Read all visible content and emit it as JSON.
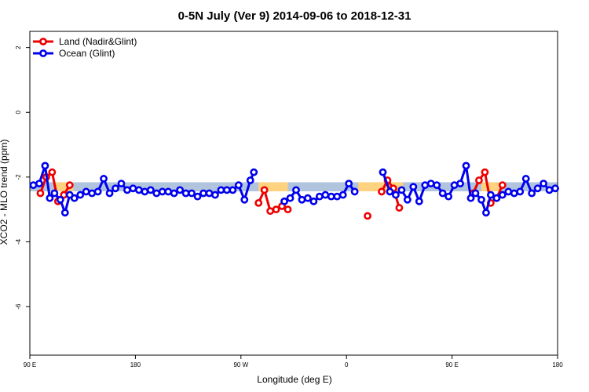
{
  "chart_data": {
    "type": "line",
    "title": "0-5N July (Ver 9)   2014-09-06 to 2018-12-31",
    "xlabel": "Longitude (deg E)",
    "ylabel": "XCO2 - MLO trend (ppm)",
    "x_ticks": [
      {
        "value": 30,
        "label": "90 E"
      },
      {
        "value": 120,
        "label": "180"
      },
      {
        "value": 210,
        "label": "90 W"
      },
      {
        "value": 300,
        "label": "0"
      },
      {
        "value": 390,
        "label": "90 E"
      },
      {
        "value": 480,
        "label": "180"
      }
    ],
    "xlim": [
      30,
      480
    ],
    "ylim": [
      -7.5,
      2.5
    ],
    "y_ticks": [
      2,
      0,
      -2,
      -4,
      -6
    ],
    "grid": false,
    "legend_position": "top-left",
    "series": [
      {
        "name": "Land (Nadir&Glint)",
        "color": "#ee0000",
        "segments": [
          [
            [
              39,
              -2.5
            ],
            [
              44,
              -2.0
            ],
            [
              49,
              -1.85
            ],
            [
              54,
              -2.75
            ],
            [
              59,
              -2.55
            ],
            [
              64,
              -2.25
            ]
          ],
          [
            [
              225,
              -2.8
            ],
            [
              230,
              -2.4
            ],
            [
              235,
              -3.05
            ],
            [
              240,
              -3.0
            ],
            [
              245,
              -2.9
            ],
            [
              250,
              -3.0
            ]
          ],
          [
            [
              318,
              -3.2
            ]
          ],
          [
            [
              330,
              -2.45
            ],
            [
              335,
              -2.1
            ],
            [
              340,
              -2.35
            ],
            [
              345,
              -2.95
            ]
          ],
          [
            [
              408,
              -2.5
            ],
            [
              413,
              -2.1
            ],
            [
              418,
              -1.85
            ],
            [
              423,
              -2.8
            ],
            [
              428,
              -2.65
            ],
            [
              433,
              -2.25
            ]
          ]
        ]
      },
      {
        "name": "Ocean (Glint)",
        "color": "#0000ee",
        "segments": [
          [
            [
              33,
              -2.25
            ],
            [
              38,
              -2.2
            ],
            [
              43,
              -1.65
            ],
            [
              47,
              -2.65
            ],
            [
              51,
              -2.5
            ],
            [
              56,
              -2.7
            ],
            [
              60,
              -3.1
            ],
            [
              64,
              -2.55
            ],
            [
              68,
              -2.65
            ],
            [
              73,
              -2.55
            ],
            [
              78,
              -2.45
            ],
            [
              83,
              -2.5
            ],
            [
              88,
              -2.45
            ],
            [
              93,
              -2.05
            ],
            [
              98,
              -2.5
            ],
            [
              103,
              -2.35
            ],
            [
              108,
              -2.2
            ],
            [
              113,
              -2.4
            ],
            [
              118,
              -2.35
            ],
            [
              123,
              -2.4
            ],
            [
              128,
              -2.45
            ],
            [
              133,
              -2.4
            ],
            [
              138,
              -2.5
            ],
            [
              143,
              -2.45
            ],
            [
              148,
              -2.45
            ],
            [
              153,
              -2.5
            ],
            [
              158,
              -2.4
            ],
            [
              163,
              -2.5
            ],
            [
              168,
              -2.5
            ],
            [
              173,
              -2.6
            ],
            [
              178,
              -2.5
            ],
            [
              183,
              -2.5
            ],
            [
              188,
              -2.55
            ],
            [
              193,
              -2.4
            ],
            [
              198,
              -2.4
            ],
            [
              203,
              -2.4
            ],
            [
              208,
              -2.25
            ],
            [
              213,
              -2.7
            ],
            [
              218,
              -2.1
            ],
            [
              221,
              -1.85
            ]
          ],
          [
            [
              247,
              -2.75
            ],
            [
              252,
              -2.65
            ],
            [
              257,
              -2.4
            ],
            [
              262,
              -2.7
            ],
            [
              267,
              -2.65
            ],
            [
              272,
              -2.75
            ],
            [
              277,
              -2.6
            ],
            [
              282,
              -2.55
            ],
            [
              287,
              -2.6
            ],
            [
              292,
              -2.6
            ],
            [
              297,
              -2.55
            ],
            [
              302,
              -2.2
            ],
            [
              307,
              -2.45
            ]
          ],
          [
            [
              331,
              -1.85
            ],
            [
              337,
              -2.45
            ],
            [
              342,
              -2.55
            ],
            [
              347,
              -2.4
            ],
            [
              352,
              -2.7
            ],
            [
              357,
              -2.3
            ],
            [
              362,
              -2.75
            ],
            [
              367,
              -2.25
            ],
            [
              372,
              -2.2
            ],
            [
              377,
              -2.25
            ],
            [
              382,
              -2.5
            ],
            [
              387,
              -2.6
            ],
            [
              392,
              -2.25
            ],
            [
              397,
              -2.2
            ],
            [
              402,
              -1.65
            ],
            [
              406,
              -2.65
            ],
            [
              410,
              -2.5
            ],
            [
              415,
              -2.7
            ],
            [
              419,
              -3.1
            ],
            [
              423,
              -2.55
            ],
            [
              428,
              -2.65
            ],
            [
              433,
              -2.55
            ],
            [
              438,
              -2.45
            ],
            [
              443,
              -2.5
            ],
            [
              448,
              -2.45
            ],
            [
              453,
              -2.05
            ],
            [
              458,
              -2.5
            ],
            [
              463,
              -2.35
            ],
            [
              468,
              -2.2
            ],
            [
              473,
              -2.4
            ],
            [
              478,
              -2.35
            ]
          ]
        ]
      }
    ],
    "background_bands": [
      {
        "color": "#b0c4de",
        "y": -2.3,
        "from": 30,
        "to": 480
      },
      {
        "color": "#ffd27f",
        "y": -2.3,
        "from": 52,
        "to": 67
      },
      {
        "color": "#ffd27f",
        "y": -2.3,
        "from": 225,
        "to": 250
      },
      {
        "color": "#ffd27f",
        "y": -2.3,
        "from": 310,
        "to": 348
      },
      {
        "color": "#ffd27f",
        "y": -2.3,
        "from": 415,
        "to": 430
      }
    ]
  }
}
